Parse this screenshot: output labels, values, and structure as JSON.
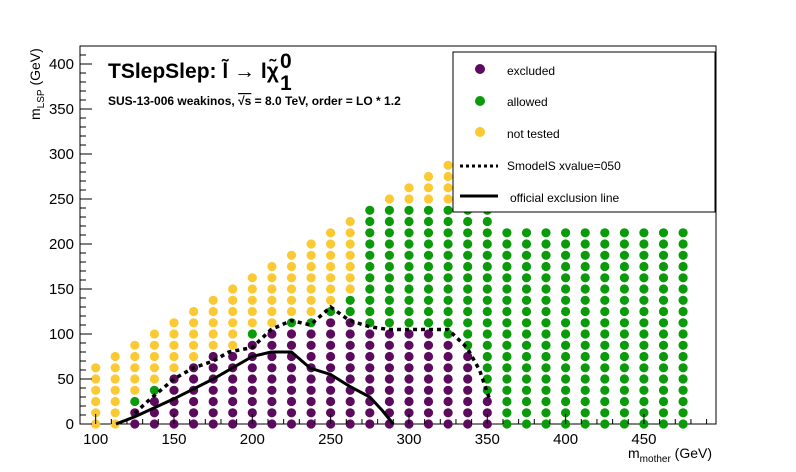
{
  "chart_data": {
    "type": "scatter",
    "title": "TSlepSlep: l̃ → lχ̃",
    "title_chi_sup": "0",
    "title_chi_sub": "1",
    "subtitle_pre": "SUS-13-006  weakinos, ",
    "subtitle_sqrt": "√s",
    "subtitle_post": " =  8.0 TeV, order =  LO * 1.2",
    "xlabel": "m",
    "xlabel_sub": "mother",
    "xlabel_unit": " (GeV)",
    "ylabel": "m",
    "ylabel_sub": "LSP",
    "ylabel_unit": " (GeV)",
    "xlim": [
      90,
      496
    ],
    "ylim": [
      0,
      420
    ],
    "x_ticks": [
      100,
      150,
      200,
      250,
      300,
      350,
      400,
      450
    ],
    "y_ticks": [
      0,
      50,
      100,
      150,
      200,
      250,
      300,
      350,
      400
    ],
    "colors": {
      "excluded": "#5c0a5e",
      "allowed": "#0a9a0a",
      "not_tested": "#fbc933"
    },
    "legend": {
      "excluded": "excluded",
      "allowed": "allowed",
      "not_tested": "not tested",
      "smodels": "SmodelS xvalue=050",
      "official": "official exclusion line"
    },
    "grid": {
      "x_start": 100,
      "x_step": 12.5,
      "x_count": 31,
      "y_step": 12.5,
      "diagonal_offset": 0,
      "top_curve_note": "upper edge follows mLSP ≈ mother - 100 for scan points"
    },
    "excluded_region": {
      "x_min": 125,
      "x_max": 350,
      "upper_y": [
        [
          125,
          12.5
        ],
        [
          137.5,
          25
        ],
        [
          150,
          50
        ],
        [
          162.5,
          62.5
        ],
        [
          175,
          75
        ],
        [
          187.5,
          75
        ],
        [
          200,
          87.5
        ],
        [
          212.5,
          100
        ],
        [
          225,
          100
        ],
        [
          237.5,
          100
        ],
        [
          250,
          112.5
        ],
        [
          262.5,
          112.5
        ],
        [
          275,
          100
        ],
        [
          287.5,
          100
        ],
        [
          300,
          100
        ],
        [
          312.5,
          100
        ],
        [
          325,
          87.5
        ],
        [
          337.5,
          75
        ],
        [
          350,
          25
        ]
      ]
    },
    "smodels_line": [
      [
        125,
        12
      ],
      [
        135,
        28
      ],
      [
        150,
        50
      ],
      [
        162,
        62
      ],
      [
        175,
        70
      ],
      [
        185,
        80
      ],
      [
        200,
        85
      ],
      [
        212,
        105
      ],
      [
        225,
        115
      ],
      [
        237,
        110
      ],
      [
        250,
        130
      ],
      [
        262,
        115
      ],
      [
        275,
        108
      ],
      [
        287,
        105
      ],
      [
        312,
        105
      ],
      [
        325,
        105
      ],
      [
        337,
        85
      ],
      [
        345,
        60
      ],
      [
        352,
        25
      ]
    ],
    "official_line": [
      [
        113,
        0
      ],
      [
        125,
        8
      ],
      [
        150,
        28
      ],
      [
        175,
        50
      ],
      [
        200,
        75
      ],
      [
        212,
        80
      ],
      [
        225,
        80
      ],
      [
        237,
        62
      ],
      [
        250,
        55
      ],
      [
        262,
        42
      ],
      [
        275,
        30
      ],
      [
        283,
        15
      ],
      [
        290,
        0
      ]
    ]
  }
}
